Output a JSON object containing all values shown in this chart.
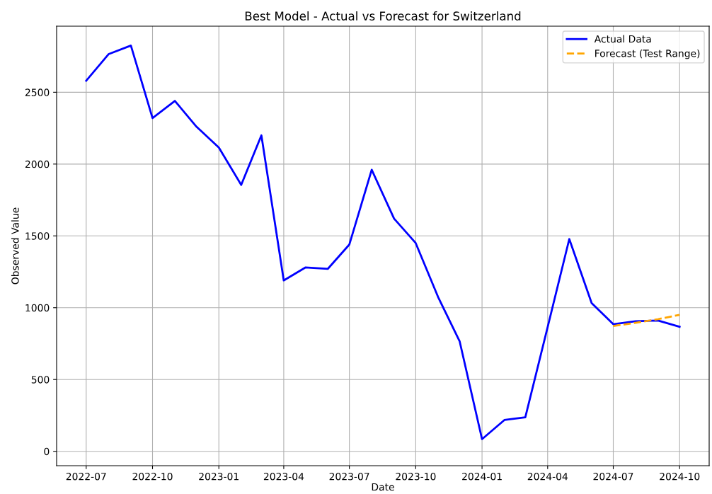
{
  "chart_data": {
    "type": "line",
    "title": "Best Model - Actual vs Forecast for Switzerland",
    "xlabel": "Date",
    "ylabel": "Observed Value",
    "xlim": [
      "2022-05-21",
      "2024-11-11"
    ],
    "ylim": [
      -100,
      2960
    ],
    "xticks": [
      {
        "value": "2022-07",
        "label": "2022-07"
      },
      {
        "value": "2022-10",
        "label": "2022-10"
      },
      {
        "value": "2023-01",
        "label": "2023-01"
      },
      {
        "value": "2023-04",
        "label": "2023-04"
      },
      {
        "value": "2023-07",
        "label": "2023-07"
      },
      {
        "value": "2023-10",
        "label": "2023-10"
      },
      {
        "value": "2024-01",
        "label": "2024-01"
      },
      {
        "value": "2024-04",
        "label": "2024-04"
      },
      {
        "value": "2024-07",
        "label": "2024-07"
      },
      {
        "value": "2024-10",
        "label": "2024-10"
      }
    ],
    "yticks": [
      0,
      500,
      1000,
      1500,
      2000,
      2500
    ],
    "grid": true,
    "legend": "top right",
    "series": [
      {
        "name": "Actual Data",
        "color": "#0000ff",
        "line_style": "solid",
        "x": [
          "2022-07",
          "2022-08",
          "2022-09",
          "2022-10",
          "2022-11",
          "2022-12",
          "2023-01",
          "2023-02",
          "2023-03",
          "2023-04",
          "2023-05",
          "2023-06",
          "2023-07",
          "2023-08",
          "2023-09",
          "2023-10",
          "2023-11",
          "2023-12",
          "2024-01",
          "2024-02",
          "2024-03",
          "2024-04",
          "2024-05",
          "2024-06",
          "2024-07",
          "2024-08",
          "2024-09",
          "2024-10"
        ],
        "values": [
          2580,
          2765,
          2825,
          2320,
          2440,
          2260,
          2115,
          1855,
          2200,
          1190,
          1280,
          1270,
          1440,
          1960,
          1620,
          1450,
          1075,
          765,
          85,
          218,
          237,
          865,
          1478,
          1032,
          885,
          906,
          911,
          867
        ]
      },
      {
        "name": "Forecast (Test Range)",
        "color": "#ffa500",
        "line_style": "dashed",
        "x": [
          "2024-07",
          "2024-08",
          "2024-09",
          "2024-10"
        ],
        "values": [
          872,
          895,
          920,
          950
        ]
      }
    ]
  }
}
